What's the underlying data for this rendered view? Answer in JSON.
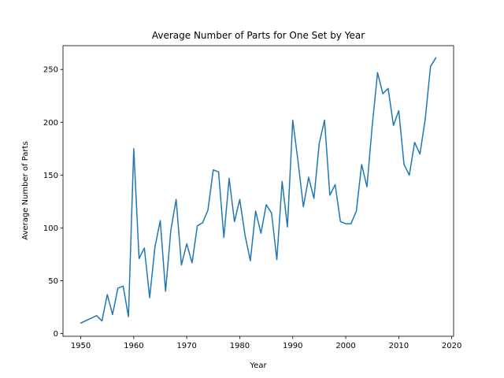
{
  "chart_data": {
    "type": "line",
    "title": "Average Number of Parts for One Set by Year",
    "xlabel": "Year",
    "ylabel": "Average Number of Parts",
    "xlim": [
      1946.65,
      2020.35
    ],
    "ylim": [
      -2.5,
      272.5
    ],
    "x_ticks": [
      1950,
      1960,
      1970,
      1980,
      1990,
      2000,
      2010,
      2020
    ],
    "y_ticks": [
      0,
      50,
      100,
      150,
      200,
      250
    ],
    "grid": false,
    "legend": "none",
    "series": [
      {
        "color": "#1f77b4",
        "x": [
          1950,
          1953,
          1954,
          1955,
          1956,
          1957,
          1958,
          1959,
          1960,
          1961,
          1962,
          1963,
          1964,
          1965,
          1966,
          1967,
          1968,
          1969,
          1970,
          1971,
          1972,
          1973,
          1974,
          1975,
          1976,
          1977,
          1978,
          1979,
          1980,
          1981,
          1982,
          1983,
          1984,
          1985,
          1986,
          1987,
          1988,
          1989,
          1990,
          1991,
          1992,
          1993,
          1994,
          1995,
          1996,
          1997,
          1998,
          1999,
          2000,
          2001,
          2002,
          2003,
          2004,
          2005,
          2006,
          2007,
          2008,
          2009,
          2010,
          2011,
          2012,
          2013,
          2014,
          2015,
          2016,
          2017
        ],
        "y": [
          10,
          17,
          12,
          37,
          18,
          43,
          45,
          16,
          175,
          71,
          81,
          34,
          82,
          107,
          40,
          98,
          127,
          65,
          85,
          67,
          102,
          105,
          117,
          155,
          153,
          91,
          147,
          106,
          127,
          93,
          69,
          116,
          95,
          122,
          114,
          70,
          144,
          101,
          202,
          163,
          120,
          148,
          128,
          180,
          202,
          131,
          141,
          106,
          104,
          104,
          116,
          160,
          139,
          197,
          247,
          227,
          232,
          197,
          211,
          160,
          150,
          181,
          170,
          203,
          253,
          261
        ]
      }
    ]
  }
}
